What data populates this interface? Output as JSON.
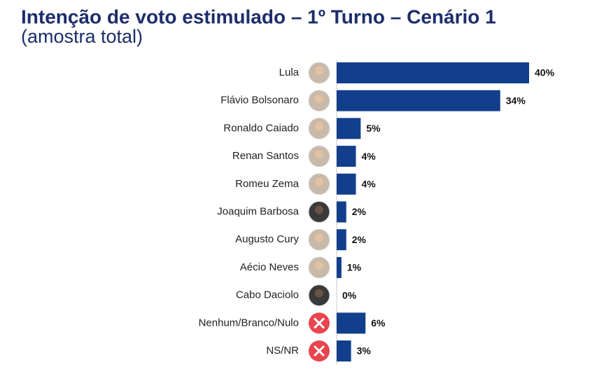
{
  "chart_data": {
    "type": "bar",
    "orientation": "horizontal",
    "title": "Intenção de voto estimulado – 1º Turno – Cenário 1",
    "subtitle": "(amostra total)",
    "categories": [
      "Lula",
      "Flávio Bolsonaro",
      "Ronaldo Caiado",
      "Renan Santos",
      "Romeu Zema",
      "Joaquim Barbosa",
      "Augusto Cury",
      "Aécio Neves",
      "Cabo Daciolo",
      "Nenhum/Branco/Nulo",
      "NS/NR"
    ],
    "values": [
      40,
      34,
      5,
      4,
      4,
      2,
      2,
      1,
      0,
      6,
      3
    ],
    "value_labels": [
      "40%",
      "34%",
      "5%",
      "4%",
      "4%",
      "2%",
      "2%",
      "1%",
      "0%",
      "6%",
      "3%"
    ],
    "color": "#123f8c"
  }
}
